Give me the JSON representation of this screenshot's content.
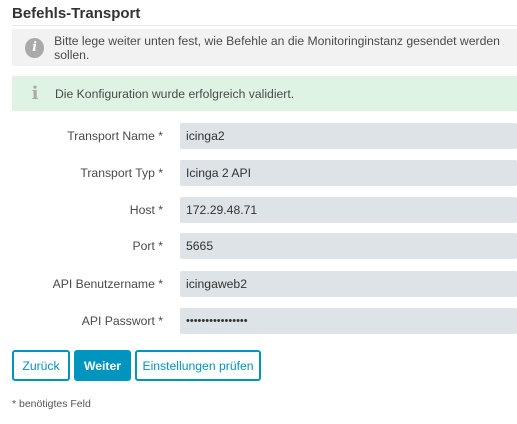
{
  "page": {
    "title": "Befehls-Transport"
  },
  "info_box": {
    "icon": "info-circle-icon",
    "text": "Bitte lege weiter unten fest, wie Befehle an die Monitoringinstanz gesendet werden sollen."
  },
  "success_box": {
    "icon": "info-icon",
    "text": "Die Konfiguration wurde erfolgreich validiert."
  },
  "form": {
    "fields": [
      {
        "label": "Transport Name *",
        "value": "icinga2"
      },
      {
        "label": "Transport Typ *",
        "value": "Icinga 2 API"
      },
      {
        "label": "Host *",
        "value": "172.29.48.71"
      },
      {
        "label": "Port *",
        "value": "5665"
      },
      {
        "label": "API Benutzername *",
        "value": "icingaweb2"
      },
      {
        "label": "API Passwort *",
        "value": "••••••••••••••••"
      }
    ]
  },
  "buttons": {
    "back": "Zurück",
    "next": "Weiter",
    "validate": "Einstellungen prüfen"
  },
  "footnote": "* benötigtes Feld",
  "colors": {
    "accent": "#0095bf",
    "info_bg": "#f2f2f2",
    "success_bg": "#dff3e5",
    "field_bg": "#dde3e6"
  }
}
